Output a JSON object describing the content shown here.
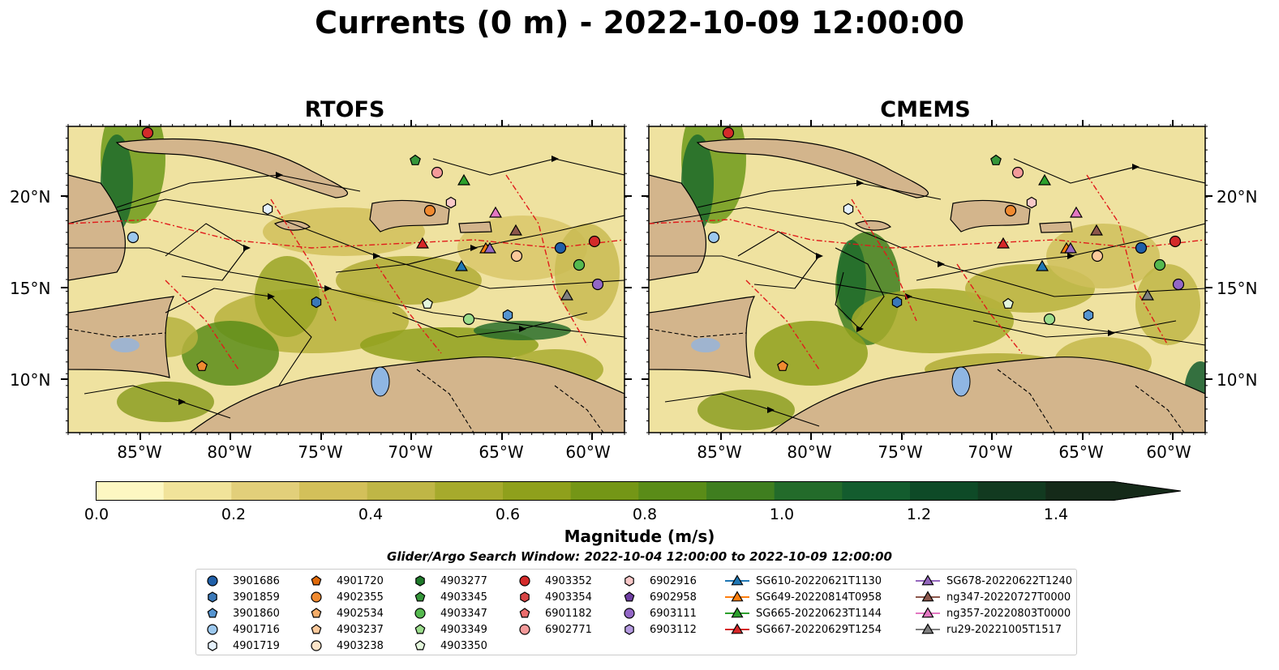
{
  "title": "Currents (0 m) - 2022-10-09 12:00:00",
  "panels": [
    {
      "title": "RTOFS"
    },
    {
      "title": "CMEMS"
    }
  ],
  "latitude_labels": [
    "20°N",
    "15°N",
    "10°N"
  ],
  "longitude_labels": [
    "85°W",
    "80°W",
    "75°W",
    "70°W",
    "65°W",
    "60°W"
  ],
  "colorbar": {
    "label": "Magnitude (m/s)",
    "ticks": [
      "0.0",
      "0.2",
      "0.4",
      "0.6",
      "0.8",
      "1.0",
      "1.2",
      "1.4"
    ],
    "range": [
      0.0,
      1.5
    ],
    "extend": "max",
    "colors": [
      "#fdf7c2",
      "#f1e39a",
      "#e2cf7a",
      "#d3c05a",
      "#bfb646",
      "#a6aa2c",
      "#8fa01c",
      "#749616",
      "#5a8c18",
      "#3f7e1f",
      "#236b2a",
      "#135c2e",
      "#0e4a27",
      "#123a20",
      "#152a19"
    ]
  },
  "search_window": "Glider/Argo Search Window: 2022-10-04 12:00:00 to 2022-10-09 12:00:00",
  "legend": {
    "columns": [
      [
        {
          "label": "3901686",
          "marker": "circle",
          "color": "#1f5fa8"
        },
        {
          "label": "3901859",
          "marker": "hexagon",
          "color": "#3a78b8"
        },
        {
          "label": "3901860",
          "marker": "pentagon",
          "color": "#5594d0"
        },
        {
          "label": "4901716",
          "marker": "circle",
          "color": "#9cc8ee"
        },
        {
          "label": "4901719",
          "marker": "hexagon",
          "color": "#e4f0fb"
        }
      ],
      [
        {
          "label": "4901720",
          "marker": "pentagon",
          "color": "#e06a0a"
        },
        {
          "label": "4902355",
          "marker": "circle",
          "color": "#f08a30"
        },
        {
          "label": "4902534",
          "marker": "pentagon",
          "color": "#f7ae6a"
        },
        {
          "label": "4903237",
          "marker": "pentagon",
          "color": "#fbc99b"
        },
        {
          "label": "4903238",
          "marker": "circle",
          "color": "#fde4c8"
        }
      ],
      [
        {
          "label": "4903277",
          "marker": "hexagon",
          "color": "#1f7a2a"
        },
        {
          "label": "4903345",
          "marker": "pentagon",
          "color": "#35963a"
        },
        {
          "label": "4903347",
          "marker": "circle",
          "color": "#55b94f"
        },
        {
          "label": "4903349",
          "marker": "pentagon",
          "color": "#9bdc8c"
        },
        {
          "label": "4903350",
          "marker": "pentagon",
          "color": "#e4f6dc"
        }
      ],
      [
        {
          "label": "4903352",
          "marker": "circle",
          "color": "#d42a2a"
        },
        {
          "label": "4903354",
          "marker": "hexagon",
          "color": "#d84545"
        },
        {
          "label": "6901182",
          "marker": "pentagon",
          "color": "#ec6d6d"
        },
        {
          "label": "6902771",
          "marker": "circle",
          "color": "#f49a9a"
        }
      ],
      [
        {
          "label": "6902916",
          "marker": "hexagon",
          "color": "#f8c8c8"
        },
        {
          "label": "6902958",
          "marker": "pentagon",
          "color": "#6f3ea3"
        },
        {
          "label": "6903111",
          "marker": "circle",
          "color": "#9367c6"
        },
        {
          "label": "6903112",
          "marker": "hexagon",
          "color": "#b49ae0"
        }
      ],
      [
        {
          "label": "SG610-20220621T1130",
          "marker": "triangle",
          "color": "#1f77b4"
        },
        {
          "label": "SG649-20220814T0958",
          "marker": "triangle",
          "color": "#ff7f0e"
        },
        {
          "label": "SG665-20220623T1144",
          "marker": "triangle",
          "color": "#2ca02c"
        },
        {
          "label": "SG667-20220629T1254",
          "marker": "triangle",
          "color": "#d62728"
        }
      ],
      [
        {
          "label": "SG678-20220622T1240",
          "marker": "triangle",
          "color": "#9467bd"
        },
        {
          "label": "ng347-20220727T0000",
          "marker": "triangle",
          "color": "#8c564b"
        },
        {
          "label": "ng357-20220803T0000",
          "marker": "triangle",
          "color": "#e377c2"
        },
        {
          "label": "ru29-20221005T1517",
          "marker": "triangle",
          "color": "#7f7f7f"
        }
      ]
    ]
  }
}
